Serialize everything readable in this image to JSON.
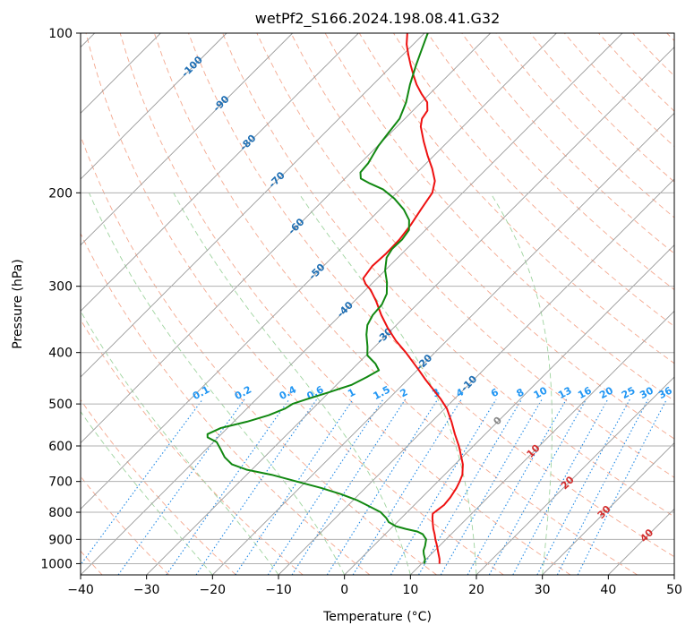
{
  "chart_data": {
    "type": "line",
    "chart_kind": "skew-T log-P",
    "title": "wetPf2_S166.2024.198.08.41.G32",
    "xlabel": "Temperature (°C)",
    "ylabel": "Pressure (hPa)",
    "xlim": [
      -40,
      50
    ],
    "ylim": [
      1050,
      100
    ],
    "y_scale": "log",
    "grid": true,
    "x_ticks": [
      -40,
      -30,
      -20,
      -10,
      0,
      10,
      20,
      30,
      40,
      50
    ],
    "y_ticks": [
      100,
      200,
      300,
      400,
      500,
      600,
      700,
      800,
      900,
      1000
    ],
    "colors": {
      "temperature": "#ee1111",
      "dewpoint": "#118811",
      "isotherm": "#999999",
      "dry_adiabat": "#f4a88f",
      "moist_adiabat": "#9fd49f",
      "mixing_ratio": "#1e88e5",
      "mixing_ratio_label": "#2196f3",
      "isotherm_label": "#1f6fb4",
      "adiabat_label": "#d32f2f",
      "zero_label": "#888888"
    },
    "series": [
      {
        "id": "temperature",
        "points": [
          [
            1000,
            12.7
          ],
          [
            980,
            12.0
          ],
          [
            950,
            10.7
          ],
          [
            925,
            9.6
          ],
          [
            900,
            8.4
          ],
          [
            880,
            7.5
          ],
          [
            860,
            6.5
          ],
          [
            840,
            5.6
          ],
          [
            820,
            4.7
          ],
          [
            805,
            4.1
          ],
          [
            790,
            4.3
          ],
          [
            775,
            4.5
          ],
          [
            750,
            4.3
          ],
          [
            720,
            3.8
          ],
          [
            700,
            3.3
          ],
          [
            680,
            2.7
          ],
          [
            650,
            1.2
          ],
          [
            620,
            -0.8
          ],
          [
            600,
            -2.2
          ],
          [
            570,
            -4.6
          ],
          [
            540,
            -7.0
          ],
          [
            510,
            -9.7
          ],
          [
            490,
            -12.0
          ],
          [
            470,
            -14.6
          ],
          [
            450,
            -17.3
          ],
          [
            430,
            -20.0
          ],
          [
            400,
            -24.4
          ],
          [
            380,
            -27.7
          ],
          [
            360,
            -30.8
          ],
          [
            340,
            -33.8
          ],
          [
            320,
            -36.7
          ],
          [
            305,
            -39.2
          ],
          [
            297,
            -40.9
          ],
          [
            290,
            -42.1
          ],
          [
            275,
            -42.6
          ],
          [
            260,
            -42.4
          ],
          [
            245,
            -42.5
          ],
          [
            230,
            -43.0
          ],
          [
            215,
            -43.8
          ],
          [
            200,
            -44.6
          ],
          [
            190,
            -46.0
          ],
          [
            180,
            -48.3
          ],
          [
            170,
            -51.0
          ],
          [
            160,
            -53.7
          ],
          [
            150,
            -56.4
          ],
          [
            145,
            -57.4
          ],
          [
            140,
            -57.8
          ],
          [
            135,
            -59.1
          ],
          [
            130,
            -61.3
          ],
          [
            125,
            -63.4
          ],
          [
            120,
            -65.3
          ],
          [
            115,
            -67.2
          ],
          [
            110,
            -69.1
          ],
          [
            105,
            -71.0
          ],
          [
            100,
            -72.6
          ]
        ]
      },
      {
        "id": "dewpoint",
        "points": [
          [
            1000,
            10.4
          ],
          [
            980,
            9.8
          ],
          [
            960,
            8.9
          ],
          [
            945,
            8.3
          ],
          [
            925,
            7.8
          ],
          [
            900,
            7.0
          ],
          [
            880,
            5.7
          ],
          [
            870,
            4.5
          ],
          [
            860,
            2.3
          ],
          [
            850,
            0.4
          ],
          [
            835,
            -1.3
          ],
          [
            820,
            -2.3
          ],
          [
            800,
            -4.0
          ],
          [
            780,
            -6.6
          ],
          [
            760,
            -9.3
          ],
          [
            740,
            -12.7
          ],
          [
            720,
            -16.7
          ],
          [
            700,
            -21.4
          ],
          [
            680,
            -26.2
          ],
          [
            665,
            -30.8
          ],
          [
            650,
            -33.8
          ],
          [
            630,
            -36.0
          ],
          [
            610,
            -37.7
          ],
          [
            590,
            -39.5
          ],
          [
            578,
            -41.6
          ],
          [
            570,
            -42.1
          ],
          [
            555,
            -41.0
          ],
          [
            540,
            -38.0
          ],
          [
            525,
            -35.7
          ],
          [
            510,
            -34.2
          ],
          [
            500,
            -33.8
          ],
          [
            490,
            -32.4
          ],
          [
            475,
            -30.0
          ],
          [
            460,
            -27.7
          ],
          [
            445,
            -26.6
          ],
          [
            432,
            -25.8
          ],
          [
            420,
            -27.3
          ],
          [
            405,
            -29.8
          ],
          [
            390,
            -31.1
          ],
          [
            370,
            -33.1
          ],
          [
            355,
            -34.4
          ],
          [
            340,
            -35.1
          ],
          [
            325,
            -35.3
          ],
          [
            310,
            -36.2
          ],
          [
            295,
            -37.9
          ],
          [
            280,
            -40.0
          ],
          [
            265,
            -41.7
          ],
          [
            255,
            -42.2
          ],
          [
            245,
            -42.1
          ],
          [
            235,
            -42.5
          ],
          [
            225,
            -44.0
          ],
          [
            215,
            -46.4
          ],
          [
            205,
            -49.5
          ],
          [
            197,
            -52.6
          ],
          [
            192,
            -55.5
          ],
          [
            188,
            -57.6
          ],
          [
            183,
            -58.6
          ],
          [
            176,
            -58.8
          ],
          [
            170,
            -59.3
          ],
          [
            163,
            -59.9
          ],
          [
            155,
            -60.3
          ],
          [
            145,
            -60.8
          ],
          [
            135,
            -62.3
          ],
          [
            125,
            -64.4
          ],
          [
            115,
            -66.4
          ],
          [
            108,
            -67.8
          ],
          [
            100,
            -69.5
          ]
        ]
      }
    ],
    "reference_lines": {
      "isotherm_interval": 10,
      "dry_adiabats_C": [
        -80,
        -70,
        -60,
        -50,
        -40,
        -30,
        -20,
        -10,
        0,
        10,
        20,
        30,
        40,
        50,
        60,
        70,
        80,
        90,
        100,
        110,
        120,
        130,
        140,
        150,
        160,
        170,
        180,
        190,
        200
      ],
      "moist_adiabats_C": [
        -20,
        -10,
        0,
        10,
        20,
        30
      ],
      "mixing_ratios_gkg": [
        0.1,
        0.2,
        0.4,
        0.6,
        1,
        1.5,
        2,
        3,
        4,
        6,
        8,
        10,
        13,
        16,
        20,
        25,
        30,
        36
      ]
    },
    "annotations": {
      "isotherm_labels": [
        {
          "text": "-100",
          "value": -100
        },
        {
          "text": "-90",
          "value": -90
        },
        {
          "text": "-80",
          "value": -80
        },
        {
          "text": "-70",
          "value": -70
        },
        {
          "text": "-60",
          "value": -60
        },
        {
          "text": "-50",
          "value": -50
        },
        {
          "text": "-40",
          "value": -40
        },
        {
          "text": "-30",
          "value": -30
        },
        {
          "text": "-20",
          "value": -20
        },
        {
          "text": "-10",
          "value": -10
        }
      ],
      "mixing_ratio_labels": [
        "0.1",
        "0.2",
        "0.4",
        "0.6",
        "1",
        "1.5",
        "2",
        "3",
        "4",
        "6",
        "8",
        "10",
        "13",
        "16",
        "20",
        "25",
        "30",
        "36"
      ],
      "zero_label": "0",
      "adiabat_labels": [
        "10",
        "20",
        "30",
        "40"
      ]
    }
  }
}
